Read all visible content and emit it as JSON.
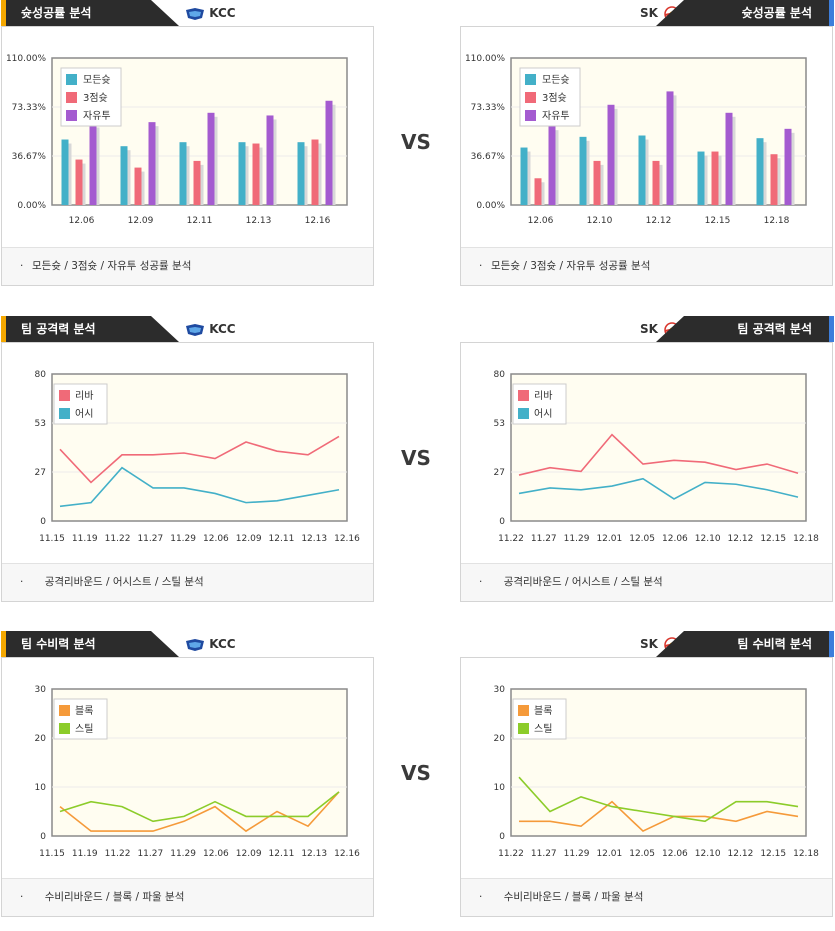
{
  "sections": [
    {
      "title": "슛성공률 분석",
      "left_team": "KCC",
      "right_team": "SK",
      "vs": "VS",
      "left_footer": "모든슛 / 3점슛 / 자유투 성공률 분석",
      "right_footer": "모든슛 / 3점슛 / 자유투 성공률 분석"
    },
    {
      "title": "팀 공격력 분석",
      "left_team": "KCC",
      "right_team": "SK",
      "vs": "VS",
      "left_footer": "공격리바운드 / 어시스트 / 스틸 분석",
      "right_footer": "공격리바운드 / 어시스트 / 스틸 분석"
    },
    {
      "title": "팀 수비력 분석",
      "left_team": "KCC",
      "right_team": "SK",
      "vs": "VS",
      "left_footer": "수비리바운드 / 블록 / 파울 분석",
      "right_footer": "수비리바운드 / 블록 / 파울 분석"
    }
  ],
  "colors": {
    "series_blue": "#43b0c8",
    "series_red": "#f06a78",
    "series_purple": "#a45bd0",
    "series_orange": "#f59a3a",
    "series_green": "#8ccc2a",
    "left_accent": "#f5a800",
    "right_accent": "#3d7edb"
  },
  "chart_data": [
    {
      "type": "bar",
      "categories": [
        "12.06",
        "12.09",
        "12.11",
        "12.13",
        "12.16"
      ],
      "yticks": [
        "110.00%",
        "73.33%",
        "36.67%",
        "0.00%"
      ],
      "ylim": [
        0,
        110
      ],
      "legend": "top-left",
      "series": [
        {
          "name": "모든슛",
          "values": [
            49,
            44,
            47,
            47,
            47
          ]
        },
        {
          "name": "3점슛",
          "values": [
            34,
            28,
            33,
            46,
            49
          ]
        },
        {
          "name": "자유투",
          "values": [
            61,
            62,
            69,
            67,
            78
          ]
        }
      ]
    },
    {
      "type": "bar",
      "categories": [
        "12.06",
        "12.10",
        "12.12",
        "12.15",
        "12.18"
      ],
      "yticks": [
        "110.00%",
        "73.33%",
        "36.67%",
        "0.00%"
      ],
      "ylim": [
        0,
        110
      ],
      "legend": "top-left",
      "series": [
        {
          "name": "모든슛",
          "values": [
            43,
            51,
            52,
            40,
            50
          ]
        },
        {
          "name": "3점슛",
          "values": [
            20,
            33,
            33,
            40,
            38
          ]
        },
        {
          "name": "자유투",
          "values": [
            59,
            75,
            85,
            69,
            57
          ]
        }
      ]
    },
    {
      "type": "line",
      "categories": [
        "11.15",
        "11.19",
        "11.22",
        "11.27",
        "11.29",
        "12.06",
        "12.09",
        "12.11",
        "12.13",
        "12.16"
      ],
      "yticks": [
        "80",
        "53",
        "27",
        "0"
      ],
      "ylim": [
        0,
        80
      ],
      "legend": "top-left",
      "series": [
        {
          "name": "리바",
          "values": [
            39,
            21,
            36,
            36,
            37,
            34,
            43,
            38,
            36,
            46
          ]
        },
        {
          "name": "어시",
          "values": [
            8,
            10,
            29,
            18,
            18,
            15,
            10,
            11,
            14,
            17
          ]
        }
      ]
    },
    {
      "type": "line",
      "categories": [
        "11.22",
        "11.27",
        "11.29",
        "12.01",
        "12.05",
        "12.06",
        "12.10",
        "12.12",
        "12.15",
        "12.18"
      ],
      "yticks": [
        "80",
        "53",
        "27",
        "0"
      ],
      "ylim": [
        0,
        80
      ],
      "legend": "top-left",
      "series": [
        {
          "name": "리바",
          "values": [
            25,
            29,
            27,
            47,
            31,
            33,
            32,
            28,
            31,
            26
          ]
        },
        {
          "name": "어시",
          "values": [
            15,
            18,
            17,
            19,
            23,
            12,
            21,
            20,
            17,
            13
          ]
        }
      ]
    },
    {
      "type": "line",
      "categories": [
        "11.15",
        "11.19",
        "11.22",
        "11.27",
        "11.29",
        "12.06",
        "12.09",
        "12.11",
        "12.13",
        "12.16"
      ],
      "yticks": [
        "30",
        "20",
        "10",
        "0"
      ],
      "ylim": [
        0,
        30
      ],
      "legend": "top-left",
      "series": [
        {
          "name": "블록",
          "values": [
            6,
            1,
            1,
            1,
            3,
            6,
            1,
            5,
            2,
            9
          ]
        },
        {
          "name": "스틸",
          "values": [
            5,
            7,
            6,
            3,
            4,
            7,
            4,
            4,
            4,
            9
          ]
        }
      ]
    },
    {
      "type": "line",
      "categories": [
        "11.22",
        "11.27",
        "11.29",
        "12.01",
        "12.05",
        "12.06",
        "12.10",
        "12.12",
        "12.15",
        "12.18"
      ],
      "yticks": [
        "30",
        "20",
        "10",
        "0"
      ],
      "ylim": [
        0,
        30
      ],
      "legend": "top-left",
      "series": [
        {
          "name": "블록",
          "values": [
            3,
            3,
            2,
            7,
            1,
            4,
            4,
            3,
            5,
            4
          ]
        },
        {
          "name": "스틸",
          "values": [
            12,
            5,
            8,
            6,
            5,
            4,
            3,
            7,
            7,
            6
          ]
        }
      ]
    }
  ]
}
